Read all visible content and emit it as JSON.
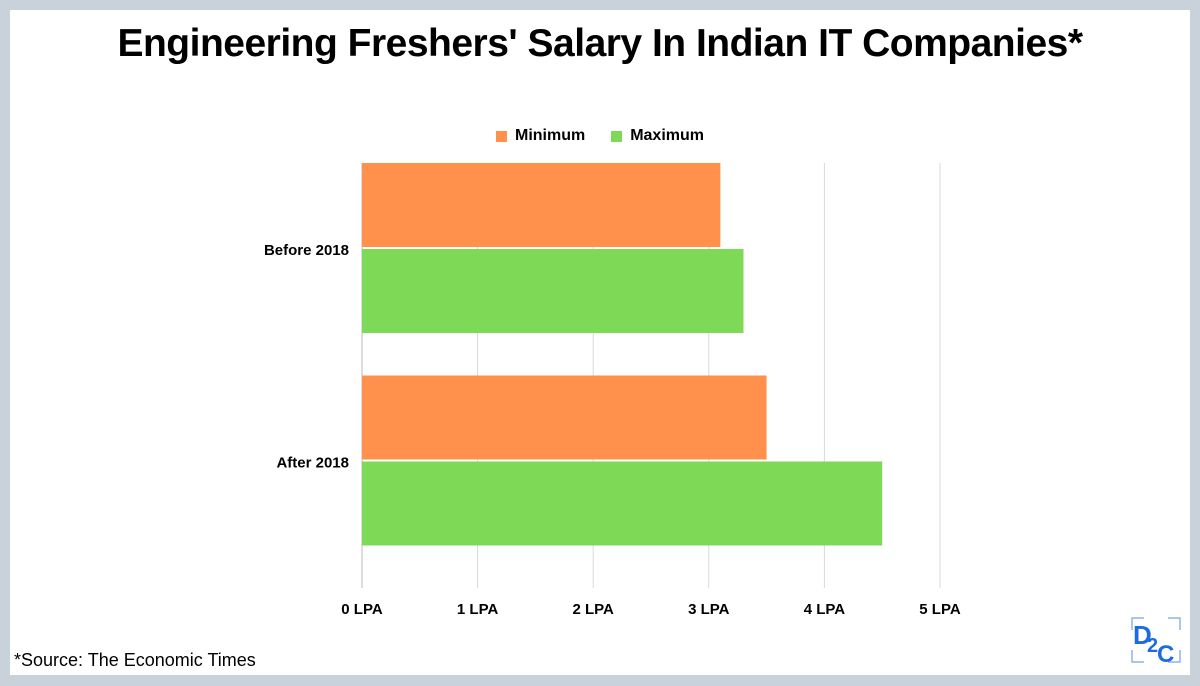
{
  "chart_data": {
    "type": "bar",
    "orientation": "horizontal",
    "title": "Engineering Freshers' Salary In Indian IT Companies*",
    "categories": [
      "Before 2018",
      "After 2018"
    ],
    "series": [
      {
        "name": "Minimum",
        "values": [
          3.1,
          3.5
        ],
        "color": "#ff914d"
      },
      {
        "name": "Maximum",
        "values": [
          3.3,
          4.5
        ],
        "color": "#7ed957"
      }
    ],
    "xlim": [
      0,
      5
    ],
    "x_ticks": [
      0,
      1,
      2,
      3,
      4,
      5
    ],
    "x_tick_labels": [
      "0 LPA",
      "1 LPA",
      "2 LPA",
      "3 LPA",
      "4 LPA",
      "5 LPA"
    ],
    "xlabel": "",
    "ylabel": "",
    "grid": "vertical",
    "legend": "top-center"
  },
  "footer": {
    "source": "*Source: The Economic Times",
    "logo_text": "D2C"
  },
  "colors": {
    "frame": "#c9d1db",
    "logo": "#1a6ce0",
    "grid": "#d9d9d9"
  }
}
